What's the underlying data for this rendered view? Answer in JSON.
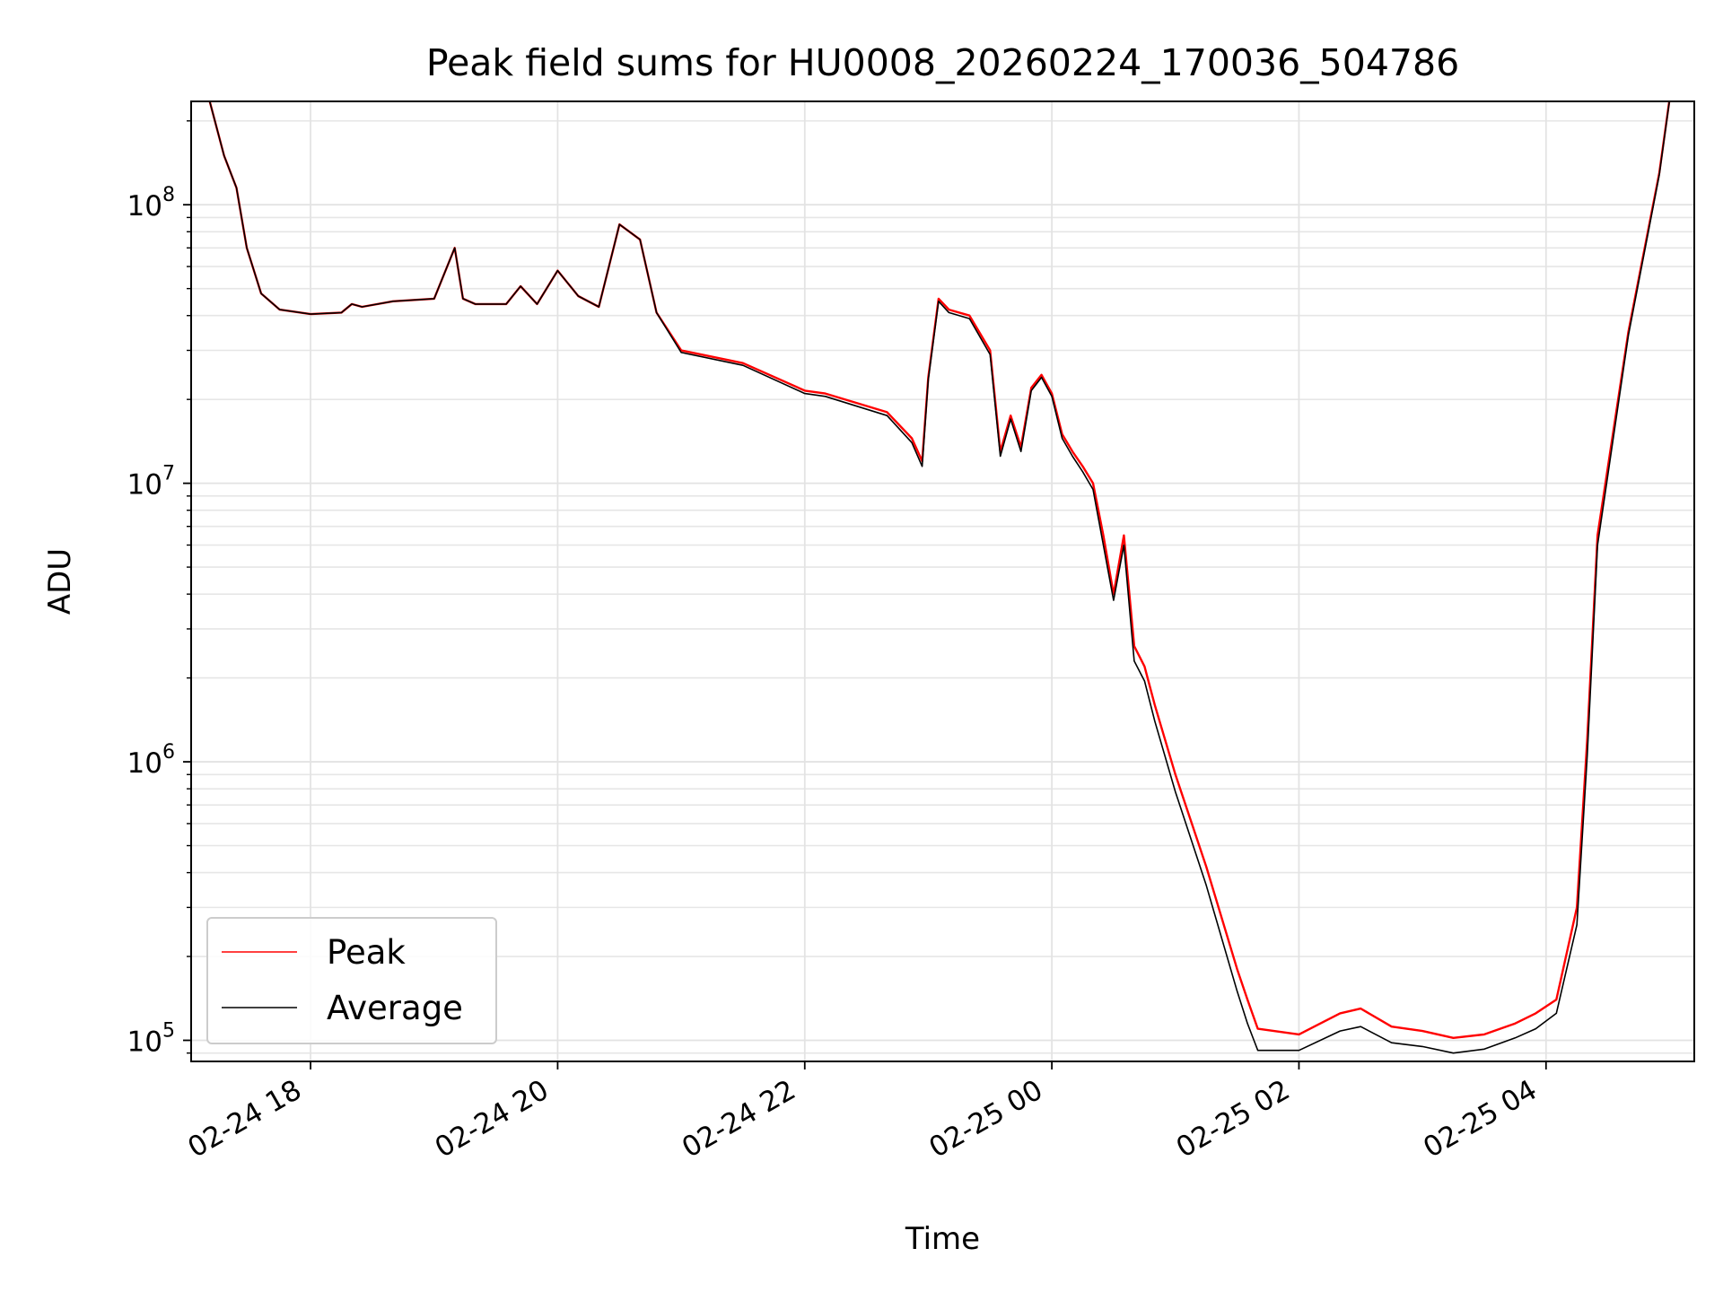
{
  "chart_data": {
    "type": "line",
    "title": "Peak field sums for HU0008_20260224_170036_504786",
    "xlabel": "Time",
    "ylabel": "ADU",
    "y_scale": "log",
    "ylim": [
      84000,
      235000000
    ],
    "xlim": [
      "02-24 17:02",
      "02-25 05:12"
    ],
    "grid": true,
    "legend_position": "lower-left",
    "x_ticks": [
      {
        "t": "02-24 18:00",
        "label": "02-24 18"
      },
      {
        "t": "02-24 20:00",
        "label": "02-24 20"
      },
      {
        "t": "02-24 22:00",
        "label": "02-24 22"
      },
      {
        "t": "02-25 00:00",
        "label": "02-25 00"
      },
      {
        "t": "02-25 02:00",
        "label": "02-25 02"
      },
      {
        "t": "02-25 04:00",
        "label": "02-25 04"
      }
    ],
    "y_ticks": [
      {
        "v": 100000,
        "base": "10",
        "exp": "5"
      },
      {
        "v": 1000000,
        "base": "10",
        "exp": "6"
      },
      {
        "v": 10000000,
        "base": "10",
        "exp": "7"
      },
      {
        "v": 100000000,
        "base": "10",
        "exp": "8"
      }
    ],
    "series": [
      {
        "name": "Peak",
        "color": "#ff0000",
        "x": [
          "02-24 17:11",
          "02-24 17:18",
          "02-24 17:24",
          "02-24 17:29",
          "02-24 17:36",
          "02-24 17:45",
          "02-24 18:00",
          "02-24 18:15",
          "02-24 18:20",
          "02-24 18:25",
          "02-24 18:40",
          "02-24 19:00",
          "02-24 19:10",
          "02-24 19:14",
          "02-24 19:20",
          "02-24 19:35",
          "02-24 19:42",
          "02-24 19:50",
          "02-24 20:00",
          "02-24 20:10",
          "02-24 20:20",
          "02-24 20:30",
          "02-24 20:40",
          "02-24 20:48",
          "02-24 21:00",
          "02-24 21:30",
          "02-24 22:00",
          "02-24 22:10",
          "02-24 22:40",
          "02-24 22:52",
          "02-24 22:57",
          "02-24 23:00",
          "02-24 23:05",
          "02-24 23:10",
          "02-24 23:20",
          "02-24 23:30",
          "02-24 23:35",
          "02-24 23:40",
          "02-24 23:45",
          "02-24 23:50",
          "02-24 23:55",
          "02-25 00:00",
          "02-25 00:05",
          "02-25 00:10",
          "02-25 00:15",
          "02-25 00:20",
          "02-25 00:25",
          "02-25 00:30",
          "02-25 00:35",
          "02-25 00:40",
          "02-25 00:45",
          "02-25 00:50",
          "02-25 01:00",
          "02-25 01:15",
          "02-25 01:30",
          "02-25 01:35",
          "02-25 01:40",
          "02-25 02:00",
          "02-25 02:20",
          "02-25 02:30",
          "02-25 02:45",
          "02-25 03:00",
          "02-25 03:15",
          "02-25 03:30",
          "02-25 03:45",
          "02-25 03:55",
          "02-25 04:05",
          "02-25 04:15",
          "02-25 04:20",
          "02-25 04:25",
          "02-25 04:40",
          "02-25 04:55",
          "02-25 05:00"
        ],
        "y": [
          235000000,
          150000000,
          115000000,
          70000000,
          48000000,
          42000000,
          40500000,
          41000000,
          44000000,
          43000000,
          45000000,
          46000000,
          70000000,
          46000000,
          44000000,
          44000000,
          51000000,
          44000000,
          58000000,
          47000000,
          43000000,
          85000000,
          75000000,
          41000000,
          30000000,
          27000000,
          21500000,
          21000000,
          18000000,
          14500000,
          12000000,
          24000000,
          46000000,
          42000000,
          40000000,
          30000000,
          13000000,
          17500000,
          13500000,
          22000000,
          24500000,
          21000000,
          15000000,
          13000000,
          11500000,
          10000000,
          6500000,
          4000000,
          6500000,
          2600000,
          2200000,
          1600000,
          900000,
          420000,
          180000,
          140000,
          110000,
          105000,
          125000,
          130000,
          112000,
          108000,
          102000,
          105000,
          115000,
          125000,
          140000,
          300000,
          1200000,
          6500000,
          35000000,
          130000000,
          240000000
        ]
      },
      {
        "name": "Average",
        "color": "#000000",
        "x": [
          "02-24 17:11",
          "02-24 17:18",
          "02-24 17:24",
          "02-24 17:29",
          "02-24 17:36",
          "02-24 17:45",
          "02-24 18:00",
          "02-24 18:15",
          "02-24 18:20",
          "02-24 18:25",
          "02-24 18:40",
          "02-24 19:00",
          "02-24 19:10",
          "02-24 19:14",
          "02-24 19:20",
          "02-24 19:35",
          "02-24 19:42",
          "02-24 19:50",
          "02-24 20:00",
          "02-24 20:10",
          "02-24 20:20",
          "02-24 20:30",
          "02-24 20:40",
          "02-24 20:48",
          "02-24 21:00",
          "02-24 21:30",
          "02-24 22:00",
          "02-24 22:10",
          "02-24 22:40",
          "02-24 22:52",
          "02-24 22:57",
          "02-24 23:00",
          "02-24 23:05",
          "02-24 23:10",
          "02-24 23:20",
          "02-24 23:30",
          "02-24 23:35",
          "02-24 23:40",
          "02-24 23:45",
          "02-24 23:50",
          "02-24 23:55",
          "02-25 00:00",
          "02-25 00:05",
          "02-25 00:10",
          "02-25 00:15",
          "02-25 00:20",
          "02-25 00:25",
          "02-25 00:30",
          "02-25 00:35",
          "02-25 00:40",
          "02-25 00:45",
          "02-25 00:50",
          "02-25 01:00",
          "02-25 01:15",
          "02-25 01:30",
          "02-25 01:35",
          "02-25 01:40",
          "02-25 02:00",
          "02-25 02:20",
          "02-25 02:30",
          "02-25 02:45",
          "02-25 03:00",
          "02-25 03:15",
          "02-25 03:30",
          "02-25 03:45",
          "02-25 03:55",
          "02-25 04:05",
          "02-25 04:15",
          "02-25 04:20",
          "02-25 04:25",
          "02-25 04:40",
          "02-25 04:55",
          "02-25 05:00"
        ],
        "y": [
          235000000,
          150000000,
          115000000,
          70000000,
          48000000,
          42000000,
          40500000,
          41000000,
          44000000,
          43000000,
          45000000,
          46000000,
          70000000,
          46000000,
          44000000,
          44000000,
          51000000,
          44000000,
          58000000,
          47000000,
          43000000,
          85000000,
          75000000,
          41000000,
          29500000,
          26500000,
          21000000,
          20500000,
          17500000,
          14000000,
          11500000,
          23500000,
          45000000,
          41000000,
          39000000,
          29000000,
          12500000,
          17000000,
          13000000,
          21500000,
          24000000,
          20500000,
          14500000,
          12500000,
          11000000,
          9500000,
          6000000,
          3800000,
          6000000,
          2300000,
          1950000,
          1400000,
          780000,
          360000,
          150000,
          115000,
          92000,
          92000,
          108000,
          112000,
          98000,
          95000,
          90000,
          93000,
          102000,
          110000,
          125000,
          260000,
          1050000,
          6000000,
          34000000,
          128000000,
          238000000
        ]
      }
    ]
  }
}
